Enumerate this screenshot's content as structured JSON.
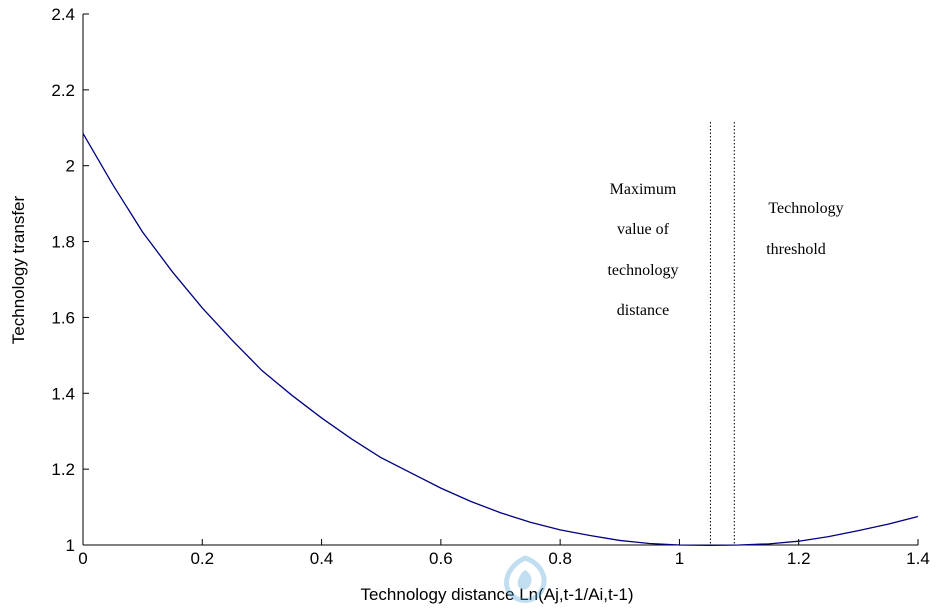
{
  "chart_data": {
    "type": "line",
    "xlabel": "Technology distance Ln(Aj,t-1/Ai,t-1)",
    "ylabel": "Technology transfer",
    "xlim": [
      0,
      1.4
    ],
    "ylim": [
      1,
      2.4
    ],
    "xticks": [
      0,
      0.2,
      0.4,
      0.6,
      0.8,
      1,
      1.2,
      1.4
    ],
    "yticks": [
      1,
      1.2,
      1.4,
      1.6,
      1.8,
      2,
      2.2,
      2.4
    ],
    "xtick_labels": [
      "0",
      "0.2",
      "0.4",
      "0.6",
      "0.8",
      "1",
      "1.2",
      "1.4"
    ],
    "ytick_labels": [
      "1",
      "1.2",
      "1.4",
      "1.6",
      "1.8",
      "2",
      "2.2",
      "2.4"
    ],
    "grid": false,
    "series": [
      {
        "color": "#000080",
        "x": [
          0,
          0.05,
          0.1,
          0.15,
          0.2,
          0.25,
          0.3,
          0.35,
          0.4,
          0.45,
          0.5,
          0.55,
          0.6,
          0.65,
          0.7,
          0.75,
          0.8,
          0.85,
          0.9,
          0.95,
          1.0,
          1.05,
          1.1,
          1.15,
          1.2,
          1.25,
          1.3,
          1.35,
          1.4
        ],
        "y": [
          2.085,
          1.95,
          1.825,
          1.72,
          1.625,
          1.54,
          1.46,
          1.395,
          1.335,
          1.28,
          1.23,
          1.19,
          1.15,
          1.115,
          1.085,
          1.06,
          1.04,
          1.025,
          1.012,
          1.004,
          1.0,
          0.999,
          1.0,
          1.003,
          1.01,
          1.022,
          1.038,
          1.055,
          1.075
        ]
      }
    ],
    "vlines": [
      {
        "x": 1.052,
        "style": "dotted"
      },
      {
        "x": 1.092,
        "style": "dotted"
      }
    ],
    "annotations": {
      "left": [
        "Maximum",
        "value of",
        "technology",
        "distance"
      ],
      "right": [
        "Technology",
        "threshold"
      ]
    }
  }
}
